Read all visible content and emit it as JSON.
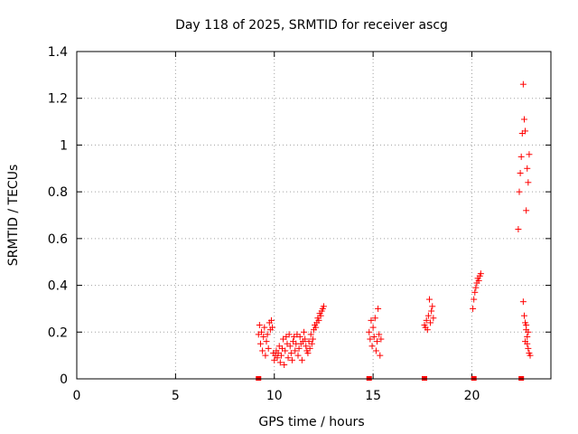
{
  "chart_data": {
    "type": "scatter",
    "title": "Day 118 of 2025, SRMTID for receiver ascg",
    "xlabel": "GPS time / hours",
    "ylabel": "SRMTID / TECUs",
    "xlim": [
      0,
      24
    ],
    "ylim": [
      0,
      1.4
    ],
    "x_ticks": [
      0,
      5,
      10,
      15,
      20
    ],
    "y_ticks": [
      0,
      0.2,
      0.4,
      0.6,
      0.8,
      1,
      1.2,
      1.4
    ],
    "x_tick_labels": [
      "0",
      "5",
      "10",
      "15",
      "20"
    ],
    "y_tick_labels": [
      "0",
      "0.2",
      "0.4",
      "0.6",
      "0.8",
      "1",
      "1.2",
      "1.4"
    ],
    "grid": true,
    "marker": "+",
    "color": "#ff0000",
    "series": [
      {
        "points": [
          [
            9.2,
            0.19
          ],
          [
            9.25,
            0.23
          ],
          [
            9.3,
            0.15
          ],
          [
            9.35,
            0.2
          ],
          [
            9.4,
            0.12
          ],
          [
            9.45,
            0.18
          ],
          [
            9.5,
            0.22
          ],
          [
            9.55,
            0.1
          ],
          [
            9.6,
            0.16
          ],
          [
            9.65,
            0.19
          ],
          [
            9.7,
            0.13
          ],
          [
            9.75,
            0.24
          ],
          [
            9.8,
            0.21
          ],
          [
            9.85,
            0.25
          ],
          [
            9.9,
            0.22
          ],
          [
            9.95,
            0.11
          ],
          [
            10.0,
            0.08
          ],
          [
            10.05,
            0.1
          ],
          [
            10.1,
            0.12
          ],
          [
            10.15,
            0.09
          ],
          [
            10.2,
            0.11
          ],
          [
            10.25,
            0.14
          ],
          [
            10.3,
            0.07
          ],
          [
            10.35,
            0.1
          ],
          [
            10.4,
            0.13
          ],
          [
            10.45,
            0.17
          ],
          [
            10.5,
            0.06
          ],
          [
            10.55,
            0.12
          ],
          [
            10.6,
            0.18
          ],
          [
            10.65,
            0.15
          ],
          [
            10.7,
            0.09
          ],
          [
            10.75,
            0.19
          ],
          [
            10.8,
            0.14
          ],
          [
            10.85,
            0.11
          ],
          [
            10.9,
            0.08
          ],
          [
            10.95,
            0.16
          ],
          [
            11.0,
            0.18
          ],
          [
            11.05,
            0.12
          ],
          [
            11.1,
            0.15
          ],
          [
            11.15,
            0.19
          ],
          [
            11.2,
            0.1
          ],
          [
            11.25,
            0.13
          ],
          [
            11.3,
            0.18
          ],
          [
            11.35,
            0.15
          ],
          [
            11.4,
            0.08
          ],
          [
            11.45,
            0.16
          ],
          [
            11.5,
            0.2
          ],
          [
            11.55,
            0.17
          ],
          [
            11.6,
            0.14
          ],
          [
            11.65,
            0.12
          ],
          [
            11.7,
            0.11
          ],
          [
            11.75,
            0.16
          ],
          [
            11.8,
            0.13
          ],
          [
            11.85,
            0.19
          ],
          [
            11.9,
            0.15
          ],
          [
            11.95,
            0.17
          ],
          [
            12.0,
            0.21
          ],
          [
            12.05,
            0.23
          ],
          [
            12.1,
            0.22
          ],
          [
            12.15,
            0.24
          ],
          [
            12.2,
            0.26
          ],
          [
            12.25,
            0.25
          ],
          [
            12.3,
            0.28
          ],
          [
            12.35,
            0.27
          ],
          [
            12.4,
            0.29
          ],
          [
            12.45,
            0.3
          ],
          [
            12.5,
            0.31
          ],
          [
            14.8,
            0.2
          ],
          [
            14.85,
            0.17
          ],
          [
            14.9,
            0.25
          ],
          [
            14.95,
            0.14
          ],
          [
            15.0,
            0.22
          ],
          [
            15.05,
            0.18
          ],
          [
            15.1,
            0.26
          ],
          [
            15.15,
            0.12
          ],
          [
            15.2,
            0.16
          ],
          [
            15.25,
            0.3
          ],
          [
            15.3,
            0.19
          ],
          [
            15.35,
            0.1
          ],
          [
            15.4,
            0.17
          ],
          [
            17.6,
            0.23
          ],
          [
            17.65,
            0.22
          ],
          [
            17.7,
            0.25
          ],
          [
            17.75,
            0.21
          ],
          [
            17.8,
            0.27
          ],
          [
            17.85,
            0.34
          ],
          [
            17.9,
            0.24
          ],
          [
            17.95,
            0.29
          ],
          [
            18.0,
            0.31
          ],
          [
            18.05,
            0.26
          ],
          [
            20.05,
            0.3
          ],
          [
            20.1,
            0.34
          ],
          [
            20.15,
            0.37
          ],
          [
            20.2,
            0.39
          ],
          [
            20.25,
            0.41
          ],
          [
            20.3,
            0.43
          ],
          [
            20.35,
            0.42
          ],
          [
            20.4,
            0.44
          ],
          [
            20.45,
            0.45
          ],
          [
            22.35,
            0.64
          ],
          [
            22.4,
            0.8
          ],
          [
            22.45,
            0.88
          ],
          [
            22.5,
            0.95
          ],
          [
            22.55,
            1.05
          ],
          [
            22.6,
            1.26
          ],
          [
            22.65,
            1.11
          ],
          [
            22.7,
            1.06
          ],
          [
            22.75,
            0.72
          ],
          [
            22.8,
            0.9
          ],
          [
            22.85,
            0.84
          ],
          [
            22.9,
            0.96
          ],
          [
            22.6,
            0.33
          ],
          [
            22.65,
            0.27
          ],
          [
            22.7,
            0.24
          ],
          [
            22.75,
            0.21
          ],
          [
            22.8,
            0.18
          ],
          [
            22.85,
            0.13
          ],
          [
            22.9,
            0.11
          ],
          [
            22.95,
            0.1
          ],
          [
            22.7,
            0.16
          ],
          [
            22.75,
            0.23
          ],
          [
            22.8,
            0.15
          ],
          [
            22.85,
            0.2
          ]
        ]
      }
    ],
    "baseline_markers": [
      9.2,
      14.8,
      17.6,
      20.1,
      22.5
    ]
  }
}
